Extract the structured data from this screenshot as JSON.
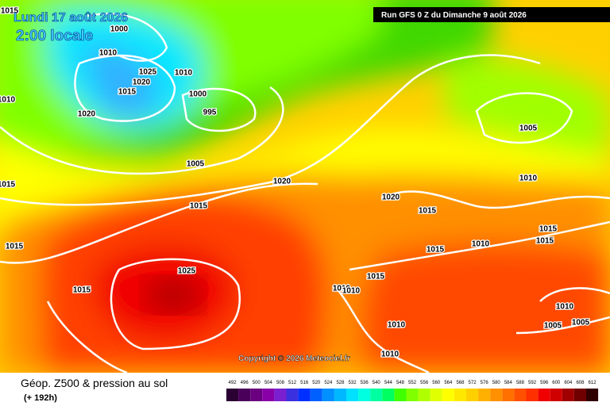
{
  "header": {
    "date": "Lundi 17 août 2026",
    "time": "2:00 locale",
    "run": "Run GFS 0 Z du Dimanche 9 août 2026"
  },
  "copyright": "Copyright © 2026 Meteociel.fr",
  "legend": {
    "title": "Géop. Z500 & pression au sol",
    "subtitle": "(+ 192h)",
    "labels": [
      492,
      496,
      500,
      504,
      508,
      512,
      516,
      520,
      524,
      528,
      532,
      536,
      540,
      544,
      548,
      552,
      556,
      560,
      564,
      568,
      572,
      576,
      580,
      584,
      588,
      592,
      596,
      600,
      604,
      608,
      612
    ],
    "colors": [
      "#2b0033",
      "#4a005a",
      "#6a0080",
      "#8a00a8",
      "#7a20d0",
      "#3a30e0",
      "#0030ff",
      "#0060ff",
      "#0090ff",
      "#00b8ff",
      "#00e0ff",
      "#00ffe0",
      "#00ffa0",
      "#00ff60",
      "#40ff00",
      "#80ff00",
      "#b0ff00",
      "#e0ff00",
      "#ffff00",
      "#ffe800",
      "#ffd000",
      "#ffb000",
      "#ff9000",
      "#ff7000",
      "#ff5000",
      "#ff3000",
      "#f00000",
      "#d00000",
      "#a00000",
      "#700000",
      "#300000"
    ]
  },
  "isobars": [
    1000,
    1010,
    1025,
    1020,
    1015,
    1010,
    1000,
    995,
    1020,
    1005,
    1020,
    1015,
    1015,
    1010,
    1015,
    1015,
    1025,
    1015,
    1020,
    1015,
    1005,
    1010,
    1015,
    1015,
    1015,
    1010,
    1015,
    1010,
    1010,
    1010,
    1005,
    1005,
    1010,
    1010
  ]
}
